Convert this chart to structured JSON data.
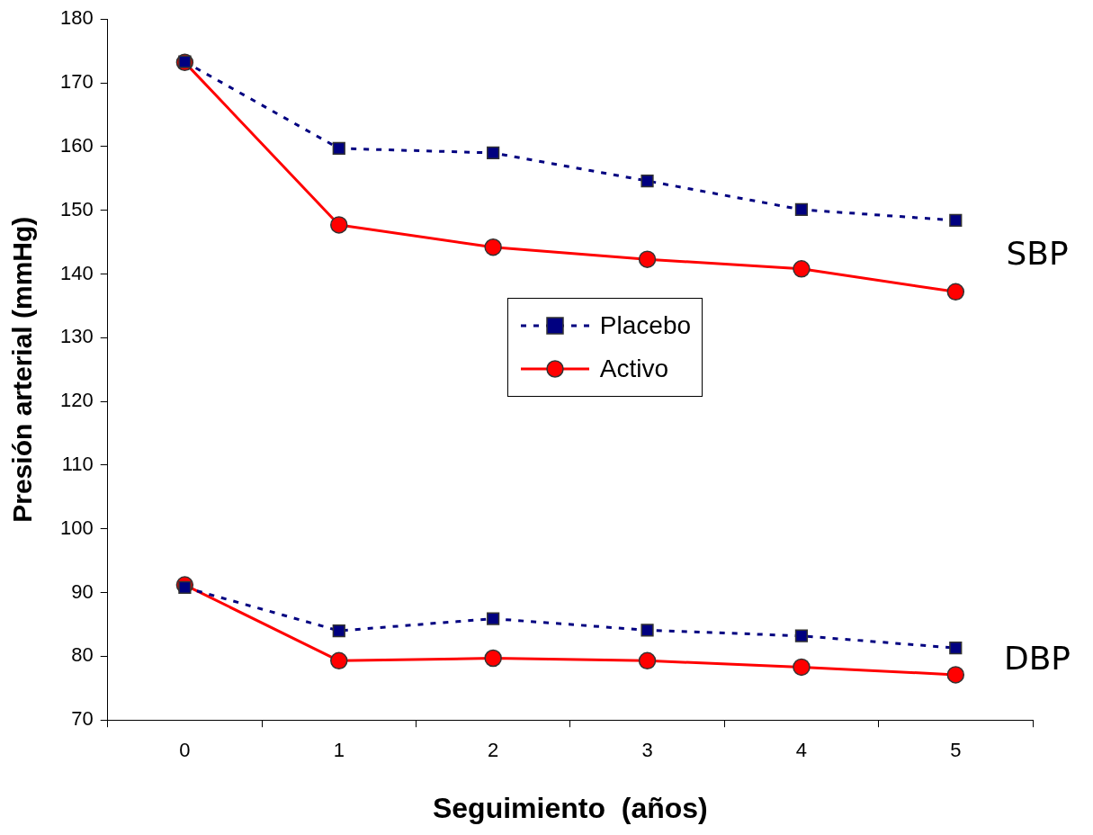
{
  "chart_data": {
    "type": "line",
    "xlabel": "Seguimiento  (años)",
    "ylabel": "Presión arterial (mmHg)",
    "categories": [
      "0",
      "1",
      "2",
      "3",
      "4",
      "5"
    ],
    "ylim": [
      70,
      180
    ],
    "yticks": [
      70,
      80,
      90,
      100,
      110,
      120,
      130,
      140,
      150,
      160,
      170,
      180
    ],
    "grid": false,
    "legend": "center",
    "annotations": [
      "SBP",
      "DBP"
    ],
    "series": [
      {
        "name": "Placebo",
        "color": "#000080",
        "marker": "square",
        "line_style": "dashed",
        "values": [
          173.3,
          159.7,
          159.0,
          154.6,
          150.1,
          148.4
        ]
      },
      {
        "name": "Activo",
        "color": "#ff0000",
        "marker": "circle",
        "line_style": "solid",
        "values": [
          173.2,
          147.7,
          144.2,
          142.3,
          140.8,
          137.2
        ]
      },
      {
        "color": "#000080",
        "marker": "square",
        "line_style": "dashed",
        "values": [
          90.8,
          84.0,
          85.9,
          84.1,
          83.2,
          81.3
        ]
      },
      {
        "color": "#ff0000",
        "marker": "circle",
        "line_style": "solid",
        "values": [
          91.2,
          79.3,
          79.7,
          79.3,
          78.3,
          77.1
        ]
      }
    ]
  }
}
